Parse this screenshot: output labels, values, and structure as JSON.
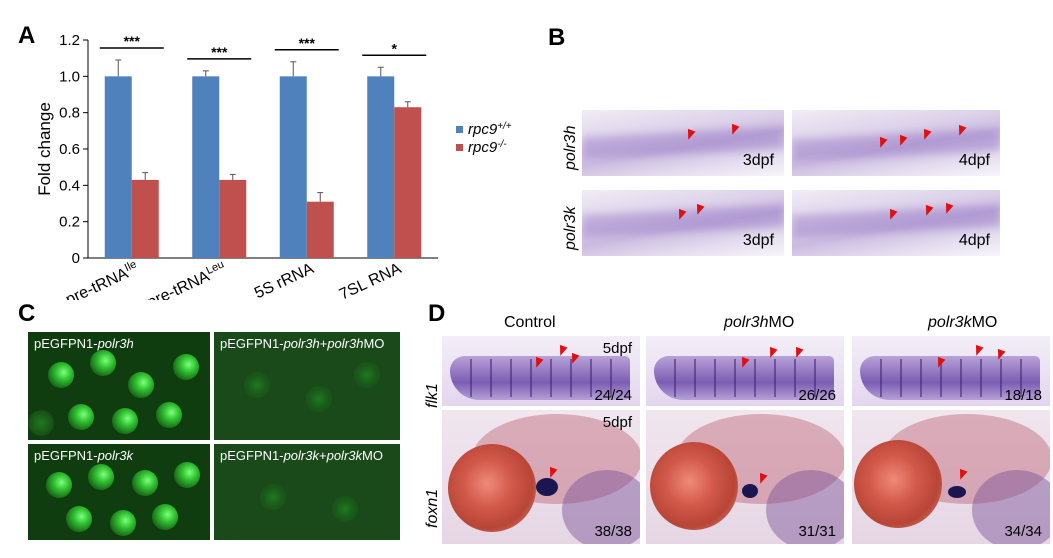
{
  "panels": {
    "a": "A",
    "b": "B",
    "c": "C",
    "d": "D"
  },
  "chart_data": {
    "type": "bar",
    "categories": [
      "pre-tRNA",
      "pre-tRNA",
      "5S rRNA",
      "7SL RNA"
    ],
    "category_superscripts": [
      "Ile",
      "Leu",
      "",
      ""
    ],
    "ylabel": "Fold change",
    "ylim": [
      0,
      1.2
    ],
    "yticks": [
      "0",
      "0.2",
      "0.4",
      "0.6",
      "0.8",
      "1.0",
      "1.2"
    ],
    "series": [
      {
        "name": "rpc9",
        "name_sup": "+/+",
        "color": "#4f81bd",
        "values": [
          1.0,
          1.0,
          1.0,
          1.0
        ],
        "errors": [
          0.09,
          0.03,
          0.08,
          0.05
        ]
      },
      {
        "name": "rpc9",
        "name_sup": "-/-",
        "color": "#c0504d",
        "values": [
          0.43,
          0.43,
          0.31,
          0.83
        ],
        "errors": [
          0.04,
          0.03,
          0.05,
          0.03
        ]
      }
    ],
    "significance": [
      "***",
      "***",
      "***",
      "*"
    ],
    "legend_position": "right"
  },
  "panel_b": {
    "row_labels": [
      "polr3h",
      "polr3k"
    ],
    "stage_labels": [
      "3dpf",
      "4dpf",
      "3dpf",
      "4dpf"
    ]
  },
  "panel_c": {
    "labels": [
      {
        "plain": "pEGFPN1-",
        "gene": "polr3h",
        "mid": "",
        "mo": ""
      },
      {
        "plain": "pEGFPN1-",
        "gene": "polr3h",
        "mid": "+",
        "mo": "polr3h"
      },
      {
        "plain": "pEGFPN1-",
        "gene": "polr3k",
        "mid": "",
        "mo": ""
      },
      {
        "plain": "pEGFPN1-",
        "gene": "polr3k",
        "mid": "+",
        "mo": "polr3k"
      }
    ],
    "mo_suffix": "MO"
  },
  "panel_d": {
    "columns": [
      {
        "gene": "",
        "suffix": "Control"
      },
      {
        "gene": "polr3h",
        "suffix": "MO"
      },
      {
        "gene": "polr3k",
        "suffix": "MO"
      }
    ],
    "row_labels": [
      "flk1",
      "foxn1"
    ],
    "stage_labels": [
      "5dpf",
      "5dpf"
    ],
    "flk1_counts": [
      "24/24",
      "26/26",
      "18/18"
    ],
    "foxn1_counts": [
      "38/38",
      "31/31",
      "34/34"
    ]
  },
  "colors": {
    "wildtype": "#4f81bd",
    "mutant": "#c0504d",
    "arrowhead": "#e01010"
  }
}
